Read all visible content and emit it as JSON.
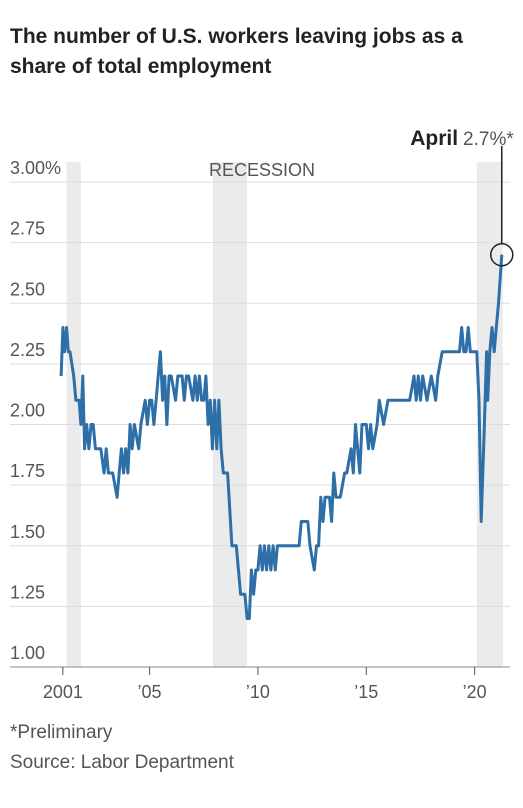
{
  "chart_data": {
    "type": "line",
    "title": "The number of U.S. workers leaving jobs as a share of total employment",
    "footnote": "*Preliminary",
    "source": "Source: Labor Department",
    "recession_label": "RECESSION",
    "recessions": [
      [
        2001.17,
        2001.83
      ],
      [
        2007.92,
        2009.5
      ],
      [
        2020.1,
        2021.3
      ]
    ],
    "annotation": {
      "label": "April",
      "value_text": "2.7%*"
    },
    "color": "#2e6fa7",
    "xlim": [
      1998.56,
      2021.63
    ],
    "xticks": [
      {
        "value": 2001,
        "label": "2001"
      },
      {
        "value": 2005,
        "label": "’05"
      },
      {
        "value": 2010,
        "label": "’10"
      },
      {
        "value": 2015,
        "label": "’15"
      },
      {
        "value": 2020,
        "label": "’20"
      }
    ],
    "ylim": [
      1,
      3
    ],
    "yticks": [
      {
        "value": 3,
        "label": "3.00%"
      },
      2.75,
      {
        "value": 2.5,
        "label": "2.50"
      },
      2.25,
      {
        "value": 2,
        "label": "2.00"
      },
      1.75,
      {
        "value": 1.5,
        "label": "1.50"
      },
      1.25,
      {
        "value": 1,
        "label": "1.00"
      }
    ],
    "grid": true,
    "x": [
      2000.92,
      2001.0,
      2001.08,
      2001.17,
      2001.25,
      2001.33,
      2001.5,
      2001.6,
      2001.75,
      2001.83,
      2001.92,
      2002.0,
      2002.1,
      2002.2,
      2002.3,
      2002.4,
      2002.5,
      2002.6,
      2002.75,
      2002.9,
      2003.0,
      2003.1,
      2003.3,
      2003.5,
      2003.6,
      2003.7,
      2003.8,
      2003.9,
      2004.0,
      2004.1,
      2004.2,
      2004.3,
      2004.5,
      2004.6,
      2004.8,
      2004.9,
      2005.0,
      2005.1,
      2005.2,
      2005.3,
      2005.4,
      2005.5,
      2005.6,
      2005.7,
      2005.8,
      2005.9,
      2006.0,
      2006.2,
      2006.3,
      2006.5,
      2006.6,
      2006.7,
      2006.8,
      2007.0,
      2007.1,
      2007.2,
      2007.3,
      2007.4,
      2007.5,
      2007.6,
      2007.7,
      2007.8,
      2007.9,
      2008.0,
      2008.1,
      2008.2,
      2008.3,
      2008.4,
      2008.6,
      2008.8,
      2009.0,
      2009.2,
      2009.4,
      2009.5,
      2009.6,
      2009.7,
      2009.8,
      2009.9,
      2010.0,
      2010.1,
      2010.2,
      2010.3,
      2010.4,
      2010.5,
      2010.6,
      2010.7,
      2010.8,
      2010.9,
      2011.0,
      2011.3,
      2011.6,
      2011.9,
      2012.0,
      2012.3,
      2012.4,
      2012.6,
      2012.7,
      2012.8,
      2012.9,
      2013.0,
      2013.1,
      2013.3,
      2013.4,
      2013.5,
      2013.6,
      2013.8,
      2014.0,
      2014.1,
      2014.3,
      2014.4,
      2014.5,
      2014.6,
      2014.7,
      2014.8,
      2015.0,
      2015.1,
      2015.2,
      2015.3,
      2015.5,
      2015.6,
      2015.8,
      2016.0,
      2016.5,
      2017.0,
      2017.2,
      2017.3,
      2017.4,
      2017.5,
      2017.6,
      2017.8,
      2018.0,
      2018.2,
      2018.3,
      2018.5,
      2019.0,
      2019.3,
      2019.4,
      2019.5,
      2019.6,
      2019.7,
      2019.8,
      2020.0,
      2020.1,
      2020.2,
      2020.3,
      2020.45,
      2020.55,
      2020.6,
      2020.7,
      2020.8,
      2020.9,
      2021.0,
      2021.1,
      2021.25
    ],
    "values": [
      2.2,
      2.4,
      2.3,
      2.4,
      2.3,
      2.3,
      2.2,
      2.1,
      2.1,
      2.0,
      2.2,
      1.9,
      2.0,
      1.9,
      2.0,
      2.0,
      1.9,
      1.9,
      1.9,
      1.8,
      1.9,
      1.8,
      1.8,
      1.7,
      1.8,
      1.9,
      1.8,
      1.9,
      1.8,
      2.0,
      1.9,
      2.0,
      1.9,
      2.0,
      2.1,
      2.0,
      2.1,
      2.1,
      2.0,
      2.1,
      2.2,
      2.3,
      2.1,
      2.2,
      2.0,
      2.2,
      2.2,
      2.1,
      2.2,
      2.2,
      2.1,
      2.2,
      2.2,
      2.1,
      2.2,
      2.1,
      2.2,
      2.1,
      2.1,
      2.2,
      2.0,
      2.1,
      1.9,
      2.1,
      1.9,
      2.1,
      1.9,
      1.8,
      1.8,
      1.5,
      1.5,
      1.3,
      1.3,
      1.2,
      1.2,
      1.4,
      1.3,
      1.4,
      1.4,
      1.5,
      1.4,
      1.5,
      1.4,
      1.5,
      1.4,
      1.5,
      1.4,
      1.5,
      1.5,
      1.5,
      1.5,
      1.5,
      1.6,
      1.6,
      1.5,
      1.4,
      1.5,
      1.5,
      1.7,
      1.6,
      1.7,
      1.7,
      1.6,
      1.8,
      1.7,
      1.7,
      1.8,
      1.8,
      1.9,
      1.8,
      2.0,
      1.9,
      1.8,
      2.0,
      2.0,
      1.9,
      2.0,
      1.9,
      2.0,
      2.1,
      2.0,
      2.1,
      2.1,
      2.1,
      2.2,
      2.1,
      2.2,
      2.1,
      2.2,
      2.1,
      2.2,
      2.1,
      2.2,
      2.3,
      2.3,
      2.3,
      2.4,
      2.3,
      2.3,
      2.4,
      2.3,
      2.3,
      2.3,
      2.1,
      1.6,
      2.0,
      2.3,
      2.1,
      2.3,
      2.4,
      2.3,
      2.4,
      2.5,
      2.7
    ]
  }
}
